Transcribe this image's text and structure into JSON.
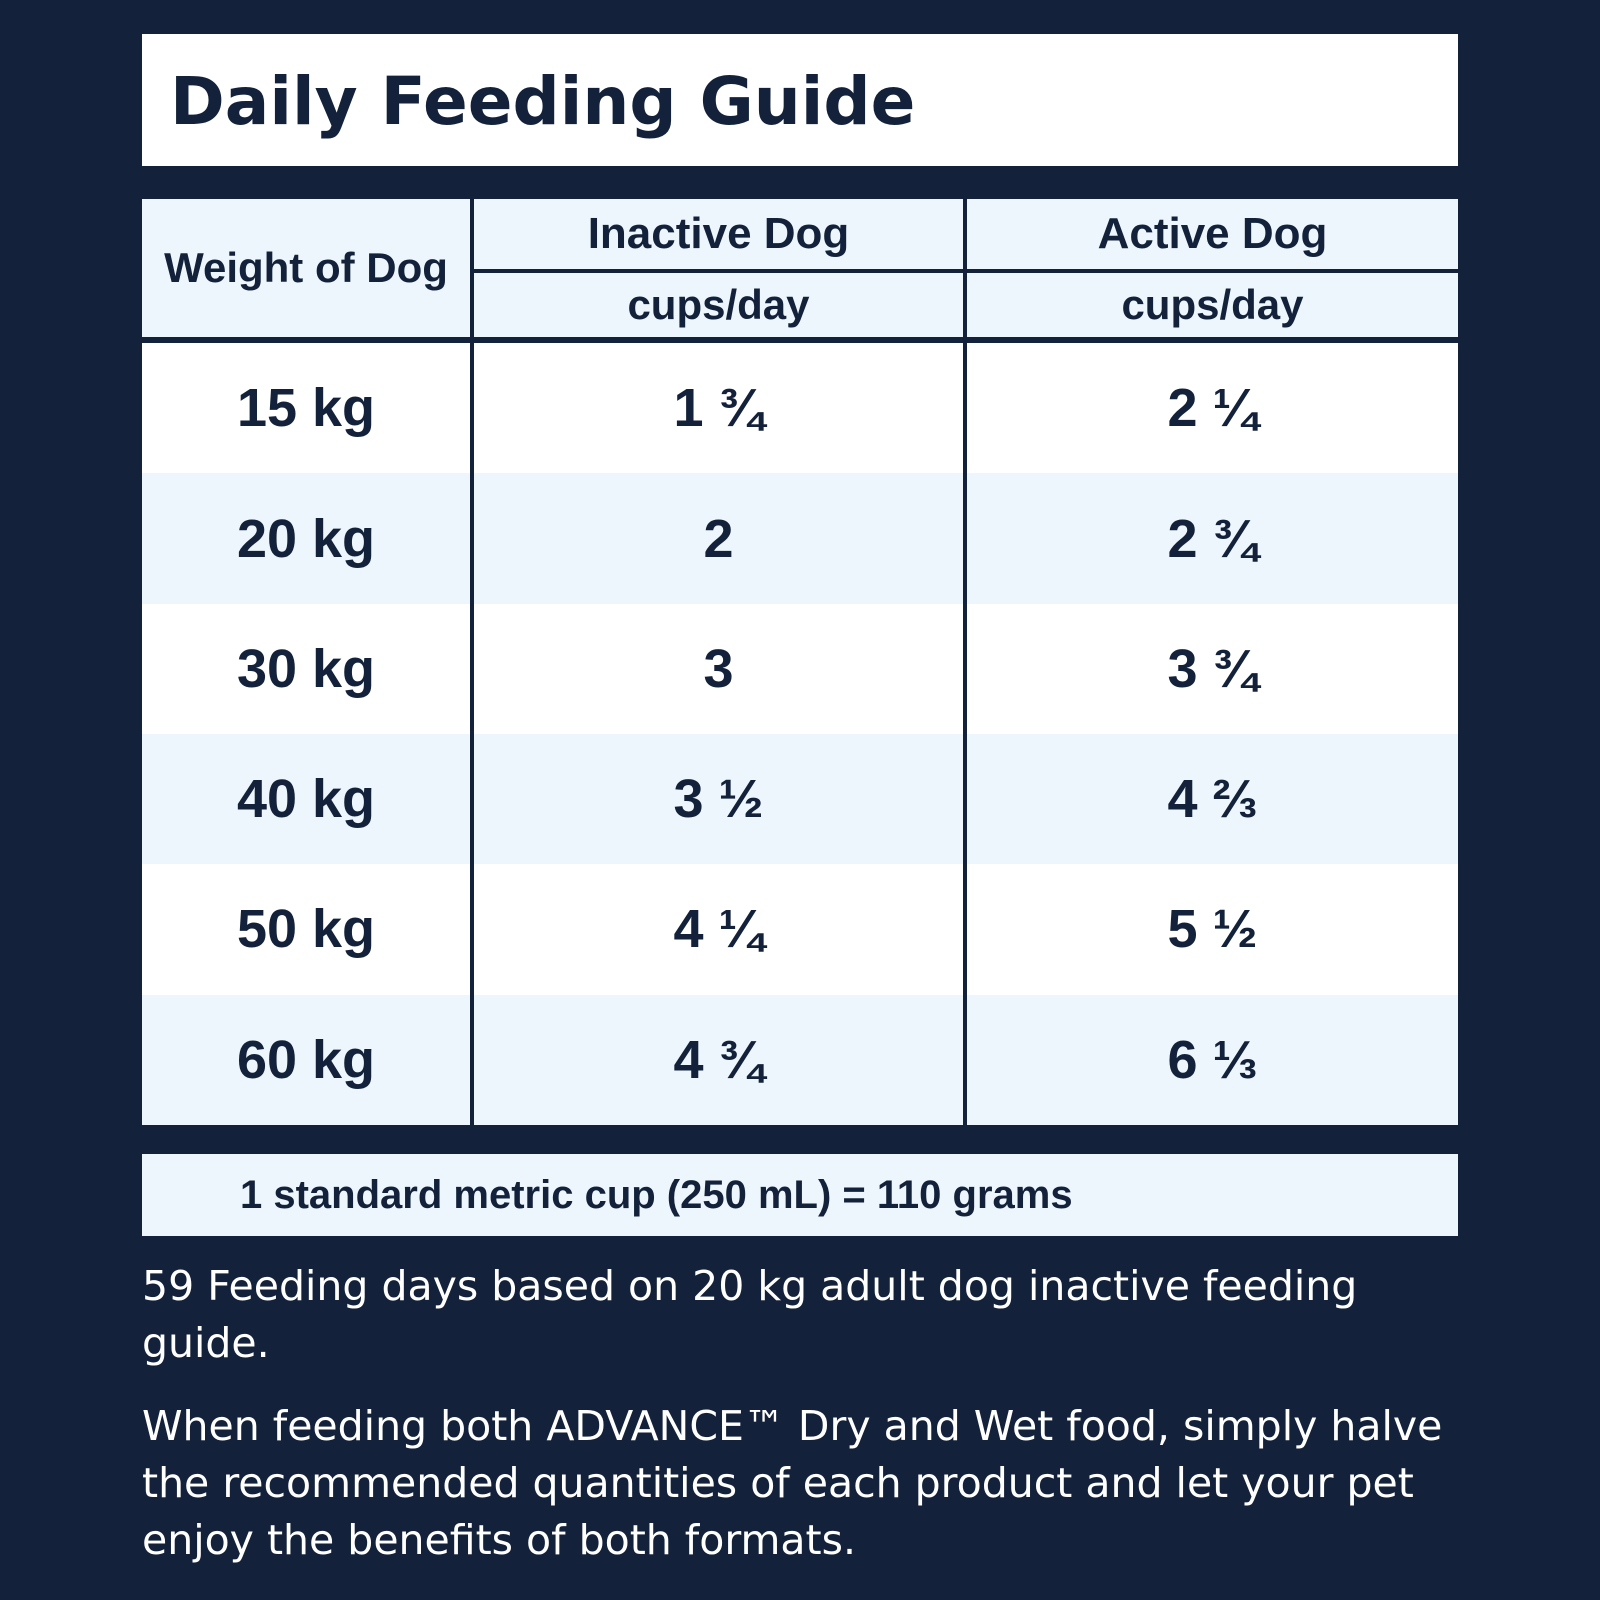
{
  "title": "Daily Feeding Guide",
  "table": {
    "header": {
      "weight_label": "Weight of Dog",
      "inactive_label": "Inactive Dog",
      "active_label": "Active Dog",
      "inactive_unit": "cups/day",
      "active_unit": "cups/day"
    },
    "rows": [
      {
        "weight": "15 kg",
        "inactive": "1 ¾",
        "active": "2 ¼"
      },
      {
        "weight": "20 kg",
        "inactive": "2",
        "active": "2 ¾"
      },
      {
        "weight": "30 kg",
        "inactive": "3",
        "active": "3 ¾"
      },
      {
        "weight": "40 kg",
        "inactive": "3 ½",
        "active": "4 ⅔"
      },
      {
        "weight": "50 kg",
        "inactive": "4 ¼",
        "active": "5 ½"
      },
      {
        "weight": "60 kg",
        "inactive": "4 ¾",
        "active": "6 ⅓"
      }
    ]
  },
  "cup_note": "1 standard metric cup (250 mL) = 110 grams",
  "paragraphs": {
    "feeding_days": "59 Feeding days based on 20 kg adult dog inactive feeding guide.",
    "combined_feeding": "When feeding both ADVANCE™ Dry and Wet food, simply halve the recommended quantities of each product and let your pet enjoy the benefits of both formats."
  },
  "colors": {
    "background": "#13223a",
    "light_row": "#ecf6fc",
    "white": "#ffffff",
    "text_dark": "#13223a"
  }
}
